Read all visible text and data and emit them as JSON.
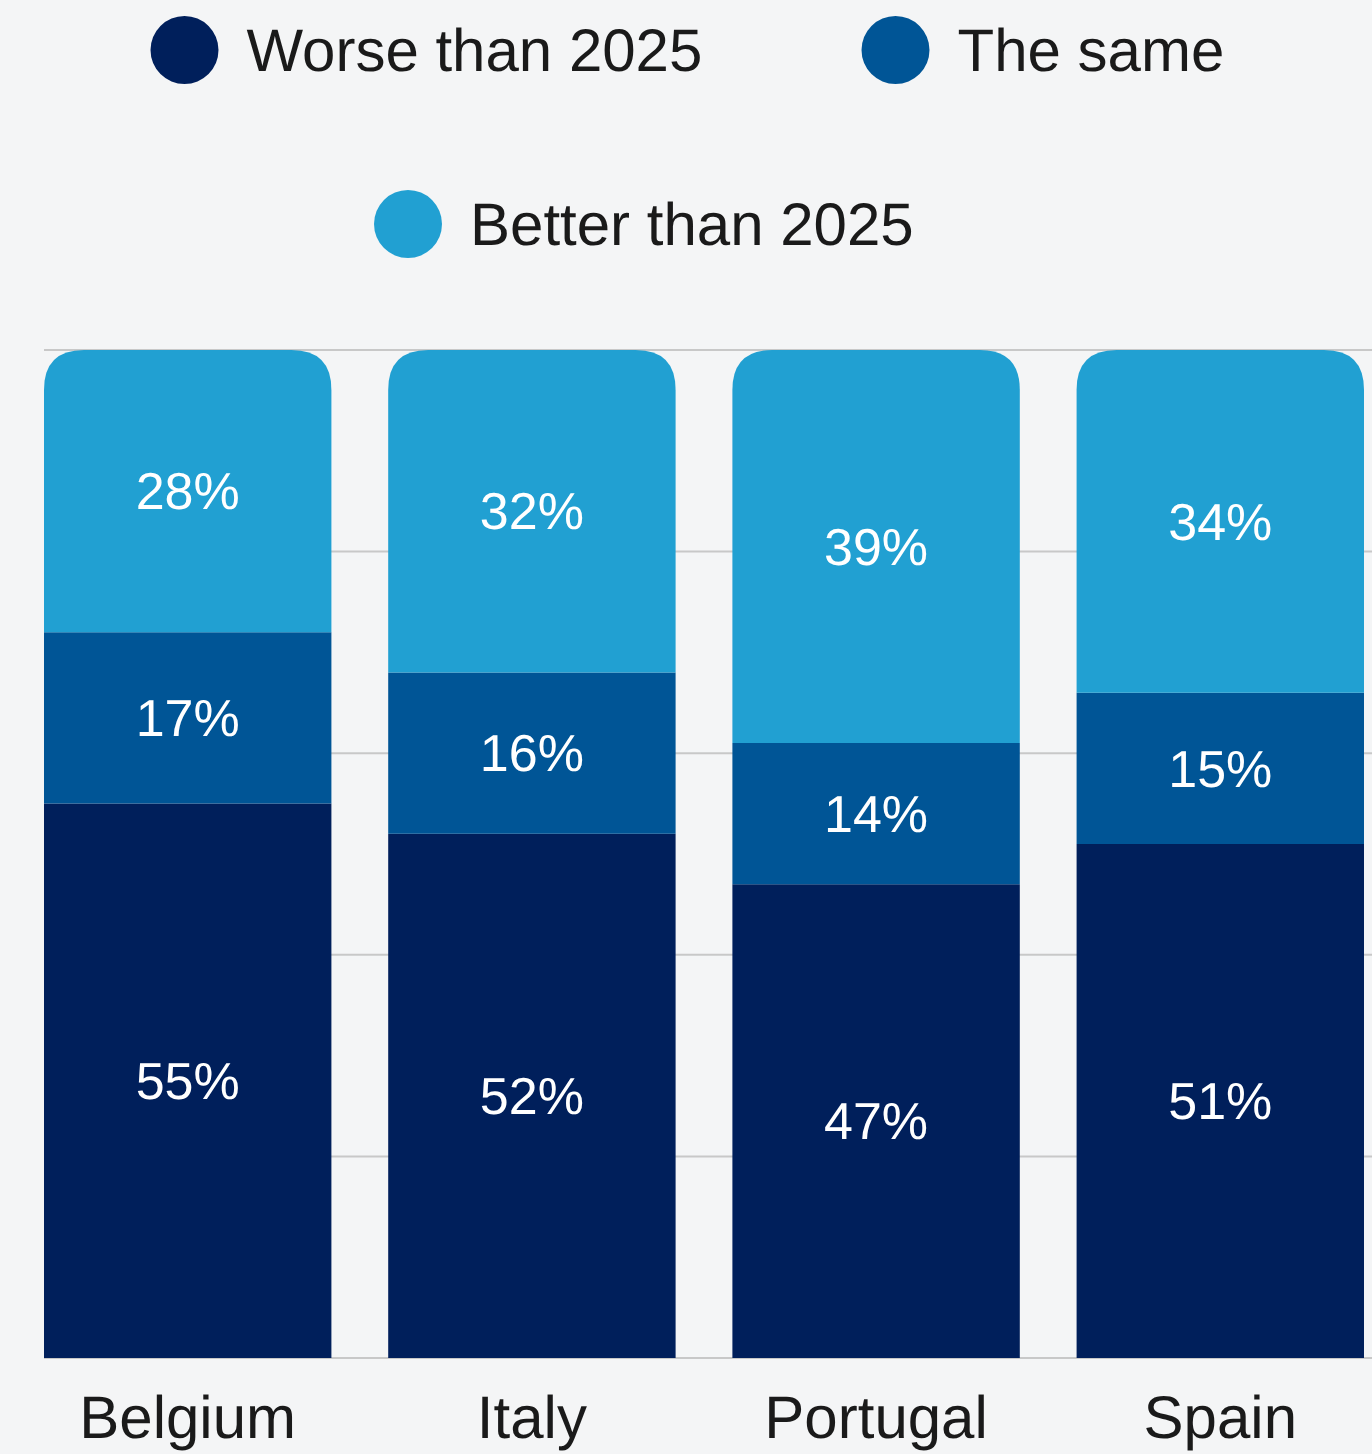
{
  "chart_data": {
    "type": "bar",
    "stacked": true,
    "categories": [
      "Belgium",
      "Italy",
      "Portugal",
      "Spain"
    ],
    "series": [
      {
        "name": "Worse than 2025",
        "color": "#001f5b",
        "values": [
          55,
          52,
          47,
          51
        ],
        "value_labels": [
          "55%",
          "52%",
          "47%",
          "51%"
        ]
      },
      {
        "name": "The same",
        "color": "#005596",
        "values": [
          17,
          16,
          14,
          15
        ],
        "value_labels": [
          "17%",
          "16%",
          "14%",
          "15%"
        ]
      },
      {
        "name": "Better than 2025",
        "color": "#21a0d2",
        "values": [
          28,
          32,
          39,
          34
        ],
        "value_labels": [
          "28%",
          "32%",
          "39%",
          "34%"
        ]
      }
    ],
    "ylim": [
      0,
      100
    ],
    "yticks": [
      {
        "value": 0,
        "label": null
      },
      {
        "value": 20,
        "label": null
      },
      {
        "value": 40,
        "label": null
      },
      {
        "value": 60,
        "label": null
      },
      {
        "value": 80,
        "label": null
      },
      {
        "value": 100,
        "label": null
      }
    ],
    "grid": "y",
    "tick_labels": "x",
    "legend": "top"
  }
}
